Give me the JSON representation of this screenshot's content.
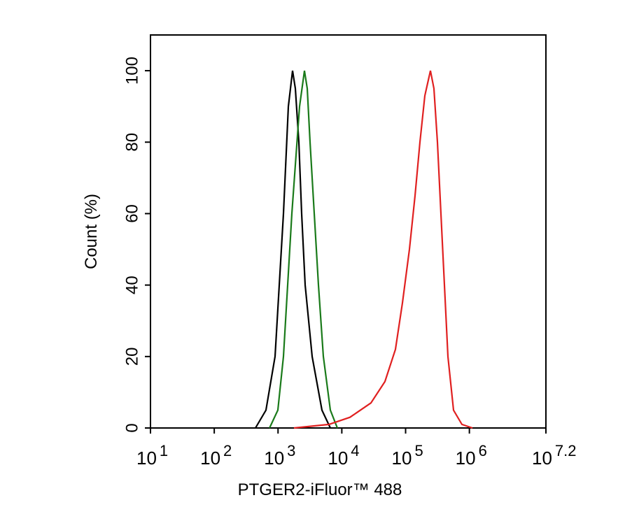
{
  "chart_data": {
    "type": "line",
    "x_label": "PTGER2-iFluor™ 488",
    "y_label": "Count  (%)",
    "x_log": true,
    "xlim": [
      10,
      15848932
    ],
    "ylim": [
      0,
      110
    ],
    "xticks": [
      {
        "value": 10,
        "label": "10",
        "exponent": "1"
      },
      {
        "value": 100,
        "label": "10",
        "exponent": "2"
      },
      {
        "value": 1000,
        "label": "10",
        "exponent": "3"
      },
      {
        "value": 10000,
        "label": "10",
        "exponent": "4"
      },
      {
        "value": 100000,
        "label": "10",
        "exponent": "5"
      },
      {
        "value": 1000000,
        "label": "10",
        "exponent": "6"
      },
      {
        "value": 15848932,
        "label": "10",
        "exponent": "7.2"
      }
    ],
    "yticks": [
      0,
      20,
      40,
      60,
      80,
      100
    ],
    "series": [
      {
        "color": "#000000",
        "x": [
          443,
          647,
          898,
          1216,
          1452,
          1690,
          1868,
          2120,
          2345,
          2661,
          3427,
          4880,
          6610
        ],
        "values": [
          0,
          5,
          20,
          60,
          90,
          100,
          95,
          80,
          60,
          40,
          20,
          5,
          0
        ]
      },
      {
        "color": "#1a7a1a",
        "x": [
          735,
          993,
          1216,
          1648,
          2174,
          2594,
          2871,
          3177,
          3698,
          4305,
          5134,
          6610,
          8515
        ],
        "values": [
          0,
          5,
          20,
          60,
          90,
          100,
          95,
          80,
          60,
          40,
          20,
          5,
          0
        ]
      },
      {
        "color": "#e02020",
        "x": [
          1778,
          6281,
          13400,
          28620,
          47450,
          69300,
          89200,
          114800,
          140500,
          167800,
          200400,
          244900,
          278000,
          315500,
          357900,
          406100,
          461000,
          564600,
          764400,
          1117000
        ],
        "values": [
          0,
          1,
          3,
          7,
          13,
          22,
          35,
          50,
          65,
          80,
          93,
          100,
          95,
          80,
          60,
          40,
          20,
          5,
          1,
          0
        ]
      }
    ]
  }
}
